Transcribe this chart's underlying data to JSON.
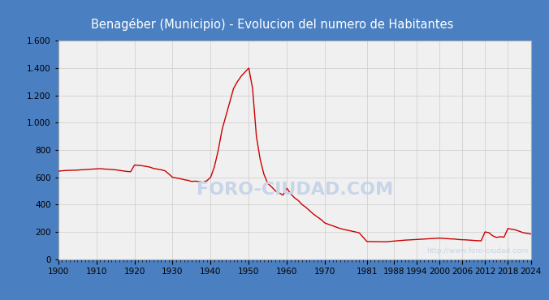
{
  "title": "Benagéber (Municipio) - Evolucion del numero de Habitantes",
  "title_color": "white",
  "header_bg_color": "#4a7fc1",
  "plot_bg_color": "#f0f0f0",
  "outer_bg_color": "#4a7fc1",
  "line_color": "#cc0000",
  "watermark_center": "FORO-CIUDAD.COM",
  "watermark_url": "http://www.foro-ciudad.com",
  "watermark_color": "#c8d4e8",
  "ylim": [
    0,
    1600
  ],
  "yticks": [
    0,
    200,
    400,
    600,
    800,
    1000,
    1200,
    1400,
    1600
  ],
  "ytick_labels": [
    "0",
    "200",
    "400",
    "600",
    "800",
    "1.000",
    "1.200",
    "1.400",
    "1.600"
  ],
  "xtick_labels": [
    "1900",
    "1910",
    "1920",
    "1930",
    "1940",
    "1950",
    "1960",
    "1970",
    "1981",
    "1988",
    "1994",
    "2000",
    "2006",
    "2012",
    "2018",
    "2024"
  ],
  "years": [
    1900,
    1901,
    1902,
    1903,
    1904,
    1905,
    1906,
    1907,
    1908,
    1909,
    1910,
    1911,
    1912,
    1913,
    1914,
    1915,
    1916,
    1917,
    1918,
    1919,
    1920,
    1921,
    1922,
    1923,
    1924,
    1925,
    1926,
    1927,
    1928,
    1929,
    1930,
    1931,
    1932,
    1933,
    1934,
    1935,
    1936,
    1937,
    1938,
    1939,
    1940,
    1941,
    1942,
    1943,
    1944,
    1945,
    1946,
    1947,
    1948,
    1949,
    1950,
    1951,
    1952,
    1953,
    1954,
    1955,
    1956,
    1957,
    1958,
    1959,
    1960,
    1961,
    1962,
    1963,
    1964,
    1965,
    1966,
    1967,
    1968,
    1969,
    1970,
    1971,
    1972,
    1973,
    1974,
    1975,
    1976,
    1977,
    1978,
    1979,
    1981,
    1986,
    1991,
    1996,
    2000,
    2001,
    2002,
    2003,
    2004,
    2005,
    2006,
    2007,
    2008,
    2009,
    2010,
    2011,
    2012,
    2013,
    2014,
    2015,
    2016,
    2017,
    2018,
    2019,
    2020,
    2021,
    2022,
    2023,
    2024
  ],
  "population": [
    645,
    648,
    650,
    651,
    652,
    653,
    655,
    656,
    658,
    660,
    662,
    663,
    661,
    659,
    657,
    655,
    651,
    647,
    643,
    641,
    690,
    688,
    685,
    680,
    675,
    665,
    660,
    655,
    648,
    625,
    600,
    595,
    590,
    583,
    578,
    570,
    572,
    568,
    564,
    575,
    600,
    680,
    800,
    950,
    1050,
    1150,
    1250,
    1300,
    1340,
    1370,
    1400,
    1250,
    900,
    730,
    620,
    555,
    530,
    500,
    485,
    470,
    520,
    480,
    450,
    430,
    400,
    380,
    355,
    330,
    310,
    290,
    265,
    255,
    245,
    235,
    225,
    218,
    212,
    206,
    200,
    193,
    130,
    128,
    140,
    148,
    155,
    153,
    151,
    149,
    148,
    145,
    143,
    142,
    140,
    138,
    136,
    135,
    200,
    195,
    172,
    160,
    165,
    162,
    225,
    220,
    215,
    205,
    195,
    190,
    185
  ]
}
